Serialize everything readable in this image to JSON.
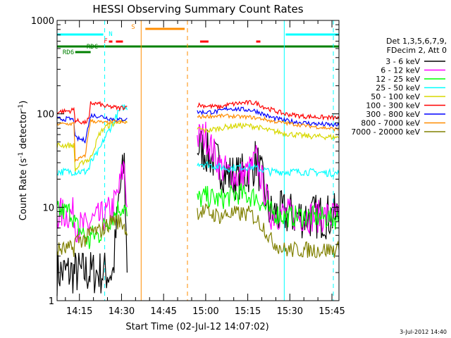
{
  "chart_data": {
    "type": "line",
    "title": "HESSI Observing Summary Count Rates",
    "xlabel": "Start Time (02-Jul-12 14:07:02)",
    "ylabel": "Count Rate (s⁻¹ detector⁻¹)",
    "ylabel_main": "Count Rate (s",
    "ylabel_sup1": "-1",
    "ylabel_mid": " detector",
    "ylabel_sup2": "-1",
    "ylabel_end": ")",
    "y_scale": "log",
    "ylim": [
      1,
      1000
    ],
    "xlim": [
      "14:07:02",
      "15:47:30"
    ],
    "x_ticks": [
      "14:15",
      "14:30",
      "14:45",
      "15:00",
      "15:15",
      "15:30",
      "15:45"
    ],
    "y_ticks": [
      "1",
      "10",
      "100",
      "1000"
    ],
    "footer": "3-Jul-2012 14:40",
    "legend_header": [
      "Det 1,3,5,6,7,9,",
      "FDecim 2, Att 0"
    ],
    "legend_placement": "right",
    "series": [
      {
        "name": "3 - 6 keV",
        "color": "#000000"
      },
      {
        "name": "6 - 12 keV",
        "color": "#ff00ff"
      },
      {
        "name": "12 - 25 keV",
        "color": "#00ff00"
      },
      {
        "name": "25 - 50 keV",
        "color": "#00ffff"
      },
      {
        "name": "50 - 100 keV",
        "color": "#d8d800"
      },
      {
        "name": "100 - 300 keV",
        "color": "#ff0000"
      },
      {
        "name": "300 - 800 keV",
        "color": "#0000ff"
      },
      {
        "name": "800 - 7000 keV",
        "color": "#ff8c00"
      },
      {
        "name": "7000 - 20000 keV",
        "color": "#808000"
      }
    ],
    "flags": [
      {
        "label": "N",
        "color": "#00ffff",
        "segments": [
          [
            "14:07:02",
            "14:23:30"
          ],
          [
            "15:28:30",
            "15:47:30"
          ]
        ]
      },
      {
        "label": "F",
        "color": "#ff0000",
        "segments": [
          [
            "14:25:30",
            "14:26:45"
          ],
          [
            "14:28:00",
            "14:30:30"
          ],
          [
            "14:58:00",
            "15:01:00"
          ],
          [
            "15:18:00",
            "15:19:30"
          ]
        ]
      },
      {
        "label": "S",
        "color": "#ff8c00",
        "segments": [
          [
            "14:38:30",
            "14:52:30"
          ]
        ]
      },
      {
        "label": "RDC",
        "color": "#008000",
        "segments": [
          [
            "14:07:02",
            "15:47:30"
          ]
        ]
      },
      {
        "label": "RD6",
        "color": "#008000",
        "segments": [
          [
            "14:13:30",
            "14:19:00"
          ]
        ]
      }
    ],
    "vertical_markers": [
      {
        "time": "14:24:00",
        "color": "#00ffff",
        "style": "dashed"
      },
      {
        "time": "14:37:00",
        "color": "#ff8c00",
        "style": "solid"
      },
      {
        "time": "14:53:30",
        "color": "#ff8c00",
        "style": "dashed"
      },
      {
        "time": "15:28:00",
        "color": "#00ffff",
        "style": "solid"
      },
      {
        "time": "15:45:30",
        "color": "#00ffff",
        "style": "dashed"
      }
    ],
    "data_gaps": [
      [
        "14:32:00",
        "14:57:00"
      ]
    ],
    "segments_data": [
      {
        "range": [
          "14:07:02",
          "14:32:00"
        ],
        "points": [
          {
            "t": "14:07:02",
            "v": [
              2.0,
              8.5,
              9.0,
              24,
              46,
              105,
              88,
              78,
              3.5
            ]
          },
          {
            "t": "14:12:00",
            "v": [
              2.0,
              8.5,
              9.0,
              24,
              46,
              108,
              88,
              78,
              3.6
            ]
          },
          {
            "t": "14:13:00",
            "v": [
              2.0,
              8.5,
              7.5,
              24,
              46,
              112,
              85,
              79,
              3.6
            ]
          },
          {
            "t": "14:13:30",
            "v": [
              2.0,
              6.5,
              6.5,
              24,
              25,
              85,
              55,
              32,
              4.5
            ]
          },
          {
            "t": "14:17:00",
            "v": [
              2.0,
              6.0,
              5.0,
              24,
              32,
              80,
              52,
              35,
              4.5
            ]
          },
          {
            "t": "14:18:30",
            "v": [
              2.0,
              6.5,
              4.0,
              26,
              32,
              90,
              82,
              72,
              5.0
            ]
          },
          {
            "t": "14:19:00",
            "v": [
              2.0,
              7.0,
              5.0,
              30,
              34,
              130,
              96,
              84,
              5.5
            ]
          },
          {
            "t": "14:22:00",
            "v": [
              2.0,
              7.5,
              5.0,
              40,
              60,
              128,
              95,
              82,
              5.5
            ]
          },
          {
            "t": "14:24:00",
            "v": [
              2.0,
              8.0,
              6.5,
              55,
              72,
              120,
              92,
              80,
              6.0
            ]
          },
          {
            "t": "14:27:00",
            "v": [
              2.0,
              10.0,
              8.0,
              80,
              78,
              118,
              88,
              82,
              7.5
            ]
          },
          {
            "t": "14:29:00",
            "v": [
              12,
              15,
              10,
              105,
              84,
              115,
              86,
              82,
              7.0
            ]
          },
          {
            "t": "14:31:00",
            "v": [
              30,
              30,
              10,
              120,
              80,
              118,
              88,
              80,
              6.5
            ]
          },
          {
            "t": "14:32:00",
            "v": [
              2.0,
              10,
              8,
              110,
              80,
              120,
              90,
              82,
              5.0
            ]
          }
        ]
      },
      {
        "range": [
          "14:57:00",
          "15:47:30"
        ],
        "points": [
          {
            "t": "14:57:00",
            "v": [
              45,
              55,
              12,
              30,
              70,
              125,
              105,
              92,
              9.0
            ]
          },
          {
            "t": "15:00:00",
            "v": [
              40,
              58,
              13,
              29,
              66,
              122,
              104,
              94,
              9.0
            ]
          },
          {
            "t": "15:05:00",
            "v": [
              28,
              28,
              12,
              27,
              70,
              118,
              106,
              95,
              8.0
            ]
          },
          {
            "t": "15:08:00",
            "v": [
              22,
              23,
              13,
              26,
              73,
              125,
              115,
              95,
              8.5
            ]
          },
          {
            "t": "15:12:00",
            "v": [
              21,
              21,
              14,
              27,
              75,
              130,
              112,
              93,
              8.5
            ]
          },
          {
            "t": "15:16:00",
            "v": [
              25,
              25,
              13,
              27,
              74,
              132,
              110,
              92,
              8.5
            ]
          },
          {
            "t": "15:18:00",
            "v": [
              33,
              33,
              13,
              26,
              73,
              130,
              107,
              90,
              7.5
            ]
          },
          {
            "t": "15:21:00",
            "v": [
              15,
              15,
              10,
              25,
              68,
              118,
              98,
              88,
              6.0
            ]
          },
          {
            "t": "15:23:00",
            "v": [
              8.5,
              8.5,
              9,
              24,
              66,
              112,
              92,
              84,
              4.5
            ]
          },
          {
            "t": "15:28:00",
            "v": [
              8.5,
              8.5,
              8,
              24,
              62,
              100,
              85,
              80,
              3.5
            ]
          },
          {
            "t": "15:35:00",
            "v": [
              8.0,
              8.0,
              8,
              24,
              58,
              94,
              80,
              75,
              3.5
            ]
          },
          {
            "t": "15:47:30",
            "v": [
              8.0,
              8.0,
              7.5,
              23,
              56,
              90,
              75,
              68,
              3.5
            ]
          }
        ]
      }
    ]
  }
}
